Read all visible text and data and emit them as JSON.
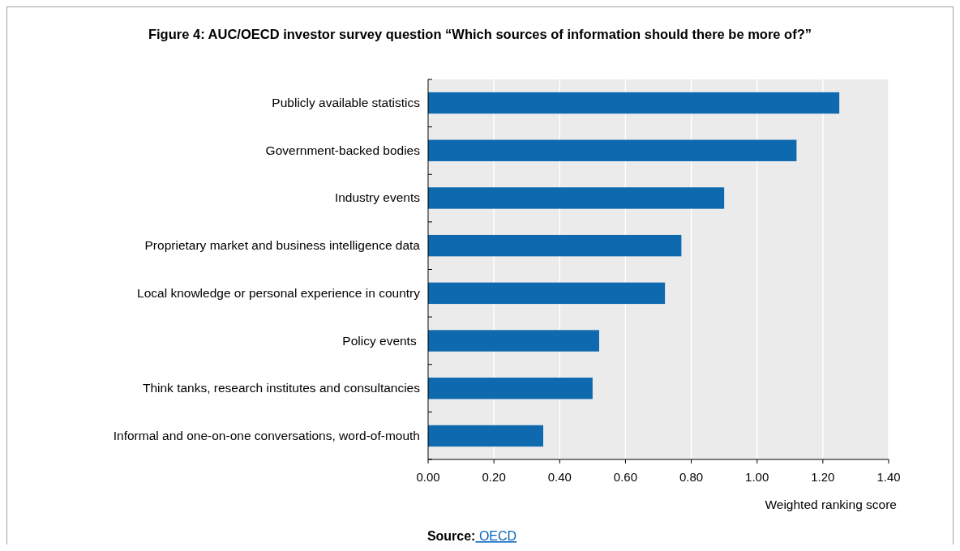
{
  "chart_data": {
    "type": "bar",
    "orientation": "horizontal",
    "title": "Figure 4: AUC/OECD investor survey question “Which sources of information should there be more of?”",
    "categories": [
      "Publicly available statistics",
      "Government-backed bodies",
      "Industry events",
      "Proprietary market and business intelligence data",
      "Local knowledge or personal experience in country",
      "Policy events ",
      "Think tanks, research institutes and consultancies",
      "Informal and one-on-one conversations, word-of-mouth"
    ],
    "values": [
      1.25,
      1.12,
      0.9,
      0.77,
      0.72,
      0.52,
      0.5,
      0.35
    ],
    "color": "#0f69af",
    "xlabel": "Weighted ranking score",
    "xlim": [
      0,
      1.4
    ],
    "xticks": [
      {
        "value": 0,
        "label": "0.00"
      },
      {
        "value": 0.2,
        "label": "0.20"
      },
      {
        "value": 0.4,
        "label": "0.40"
      },
      {
        "value": 0.6,
        "label": "0.60"
      },
      {
        "value": 0.8,
        "label": "0.80"
      },
      {
        "value": 1,
        "label": "1.00"
      },
      {
        "value": 1.2,
        "label": "1.20"
      },
      {
        "value": 1.4,
        "label": "1.40"
      }
    ],
    "grid": "x",
    "annotations": [
      "Source: OECD"
    ]
  }
}
